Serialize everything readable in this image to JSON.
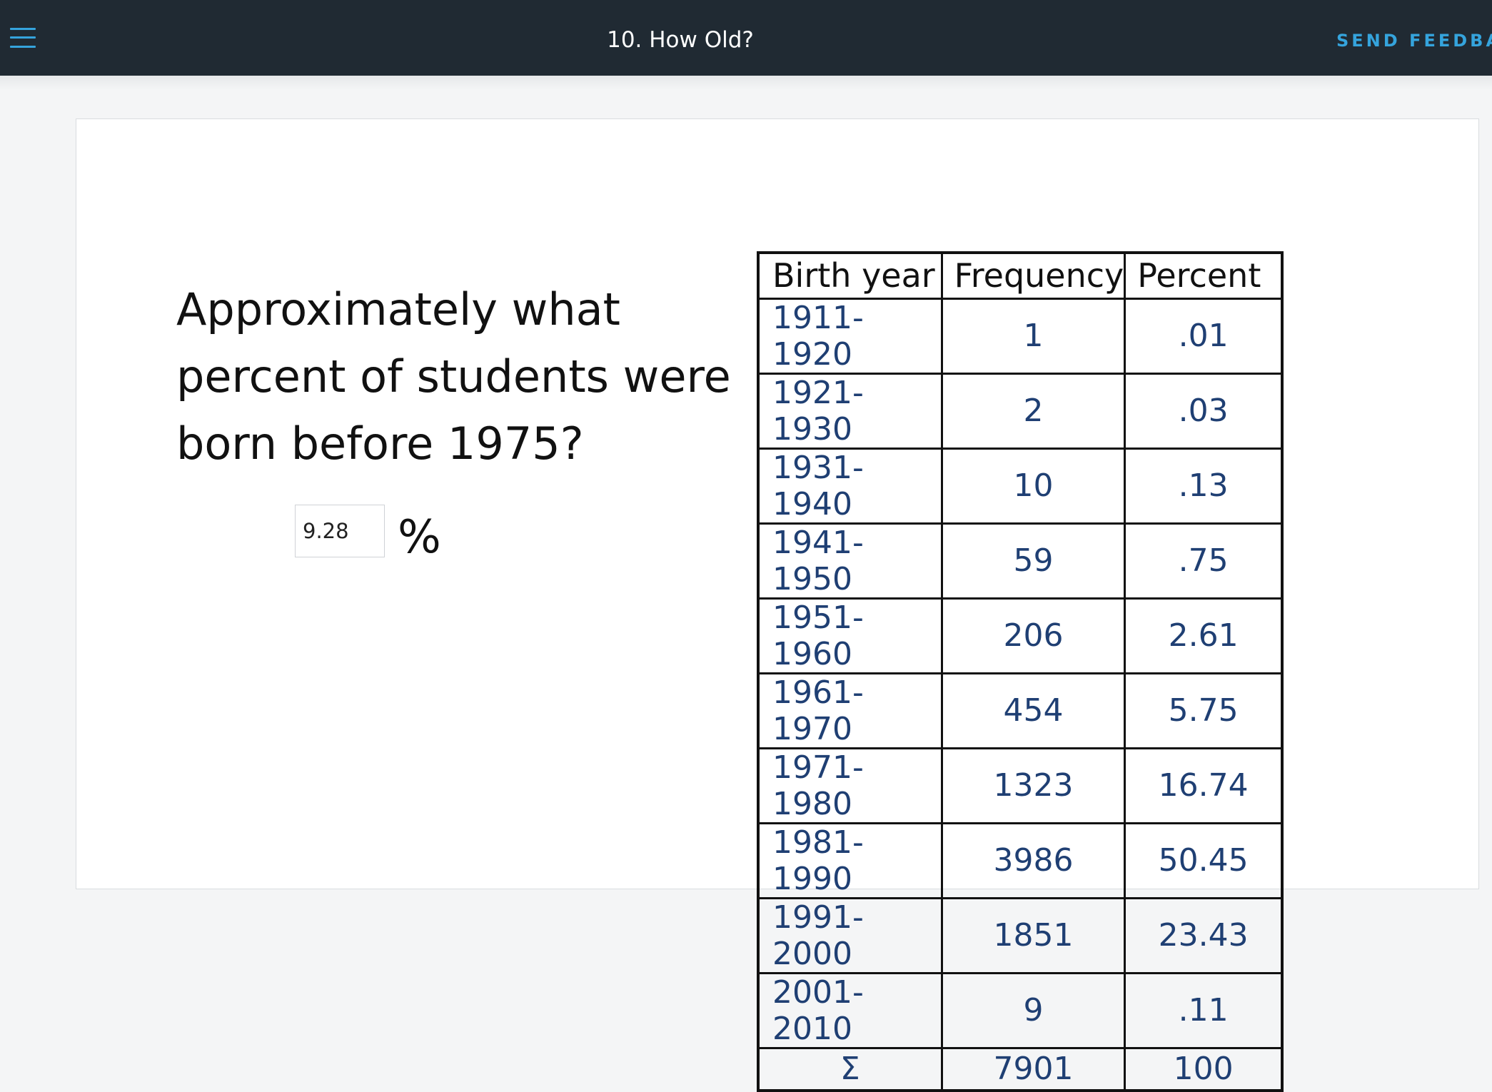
{
  "header": {
    "title": "10. How Old?",
    "feedback_label": "SEND FEEDBAC",
    "menu_icon": "hamburger-menu-icon"
  },
  "question": {
    "text": "Approximately what percent of students were born before 1975?",
    "answer_value": "9.28",
    "unit": "%"
  },
  "table": {
    "headers": [
      "Birth year",
      "Frequency",
      "Percent"
    ],
    "rows": [
      {
        "year": "1911-1920",
        "frequency": "1",
        "percent": ".01"
      },
      {
        "year": "1921-1930",
        "frequency": "2",
        "percent": ".03"
      },
      {
        "year": "1931-1940",
        "frequency": "10",
        "percent": ".13"
      },
      {
        "year": "1941-1950",
        "frequency": "59",
        "percent": ".75"
      },
      {
        "year": "1951-1960",
        "frequency": "206",
        "percent": "2.61"
      },
      {
        "year": "1961-1970",
        "frequency": "454",
        "percent": "5.75"
      },
      {
        "year": "1971-1980",
        "frequency": "1323",
        "percent": "16.74"
      },
      {
        "year": "1981-1990",
        "frequency": "3986",
        "percent": "50.45"
      },
      {
        "year": "1991-2000",
        "frequency": "1851",
        "percent": "23.43"
      },
      {
        "year": "2001-2010",
        "frequency": "9",
        "percent": ".11"
      }
    ],
    "total": {
      "symbol": "Σ",
      "frequency": "7901",
      "percent": "100"
    }
  },
  "colors": {
    "topbar": "#202a33",
    "accent": "#35a4dd",
    "handwriting_blue": "#1f3f73"
  }
}
